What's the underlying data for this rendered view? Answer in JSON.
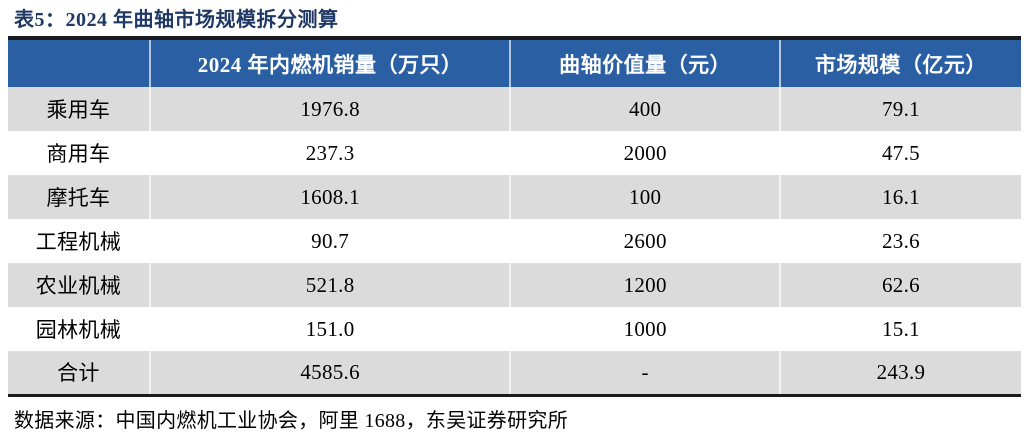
{
  "title": "表5：2024 年曲轴市场规模拆分测算",
  "table": {
    "columns": [
      "",
      "2024 年内燃机销量（万只）",
      "曲轴价值量（元）",
      "市场规模（亿元）"
    ],
    "rows": [
      {
        "category": "乘用车",
        "sales": "1976.8",
        "unit_value": "400",
        "market_size": "79.1"
      },
      {
        "category": "商用车",
        "sales": "237.3",
        "unit_value": "2000",
        "market_size": "47.5"
      },
      {
        "category": "摩托车",
        "sales": "1608.1",
        "unit_value": "100",
        "market_size": "16.1"
      },
      {
        "category": "工程机械",
        "sales": "90.7",
        "unit_value": "2600",
        "market_size": "23.6"
      },
      {
        "category": "农业机械",
        "sales": "521.8",
        "unit_value": "1200",
        "market_size": "62.6"
      },
      {
        "category": "园林机械",
        "sales": "151.0",
        "unit_value": "1000",
        "market_size": "15.1"
      },
      {
        "category": "合计",
        "sales": "4585.6",
        "unit_value": "-",
        "market_size": "243.9"
      }
    ]
  },
  "footer": {
    "source": "数据来源：中国内燃机工业协会，阿里 1688，东吴证券研究所"
  },
  "colors": {
    "header_bg": "#2A5FA4",
    "row_alt_bg": "#DBDBDB",
    "title_color": "#1F3864",
    "table_border": "#1b1b1f"
  }
}
